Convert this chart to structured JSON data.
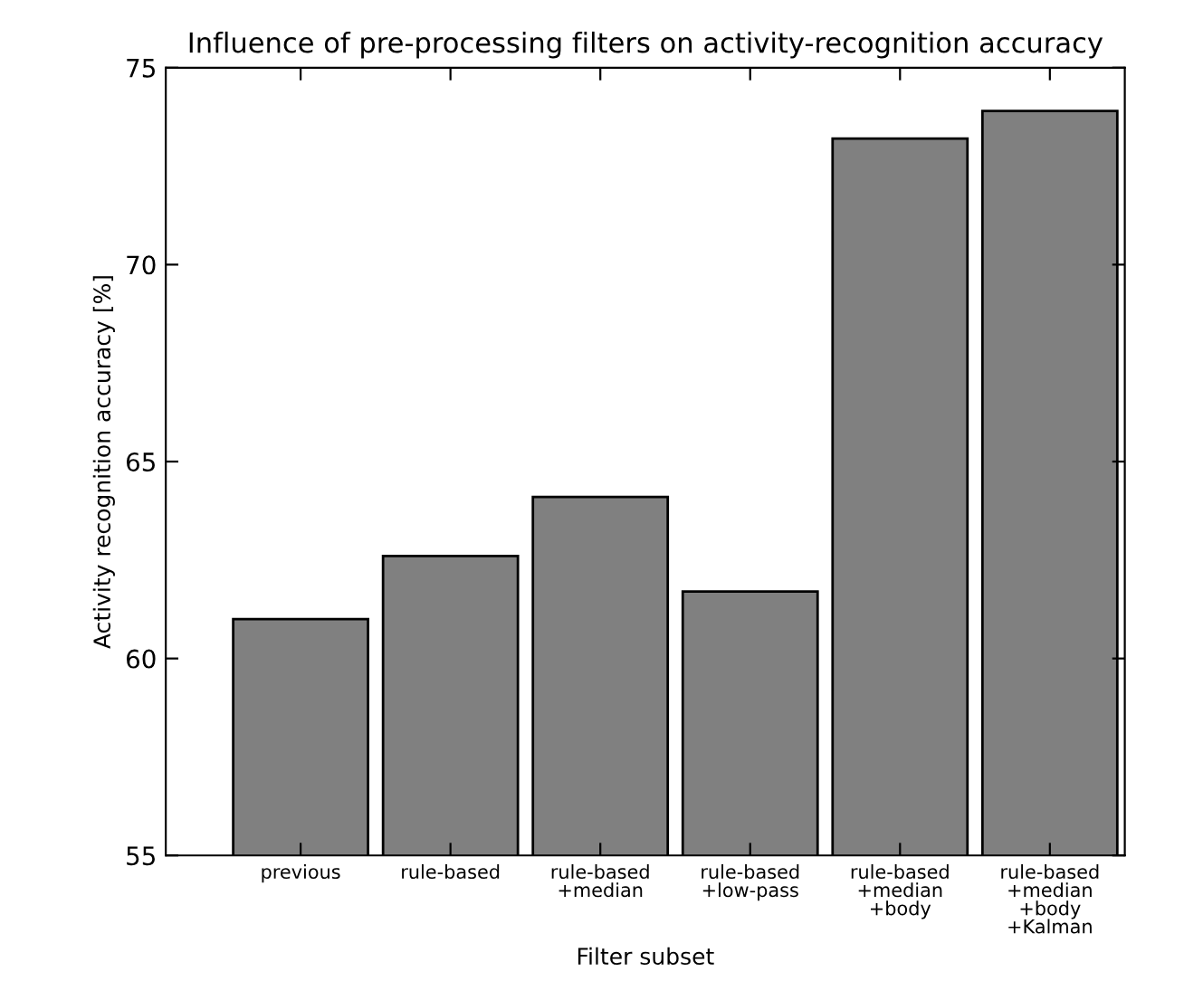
{
  "chart_data": {
    "type": "bar",
    "title": "Influence of pre-processing filters on activity-recognition accuracy",
    "xlabel": "Filter subset",
    "ylabel": "Activity recognition accuracy [%]",
    "categories": [
      "previous",
      "rule-based",
      "rule-based\n+median",
      "rule-based\n+low-pass",
      "rule-based\n+median\n+body",
      "rule-based\n+median\n+body\n+Kalman"
    ],
    "values": [
      61.0,
      62.6,
      64.1,
      61.7,
      73.2,
      73.9
    ],
    "color": "#808080",
    "ylim": [
      55,
      75
    ],
    "yticks": [
      55,
      60,
      65,
      70,
      75
    ],
    "grid": false,
    "legend": false
  }
}
